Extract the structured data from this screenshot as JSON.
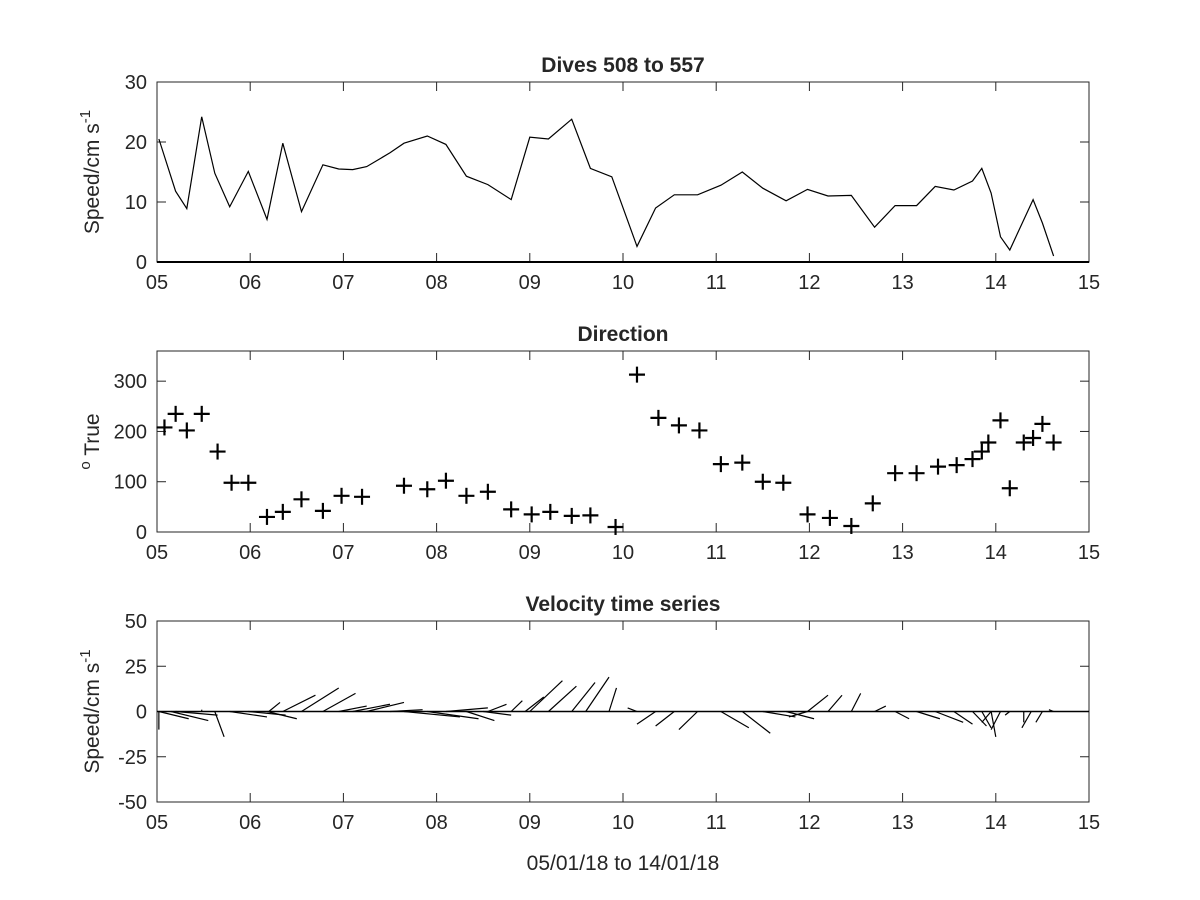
{
  "chart_data": [
    {
      "type": "line",
      "title": "Dives 508 to 557",
      "ylabel": "Speed/cm s",
      "ylabel_superscript": "-1",
      "xlabel": "",
      "xlim": [
        5,
        15
      ],
      "ylim": [
        0,
        30
      ],
      "xticks": [
        "05",
        "06",
        "07",
        "08",
        "09",
        "10",
        "11",
        "12",
        "13",
        "14",
        "15"
      ],
      "yticks": [
        "0",
        "10",
        "20",
        "30"
      ],
      "grid": false,
      "x": [
        5.02,
        5.2,
        5.32,
        5.48,
        5.62,
        5.78,
        5.98,
        6.18,
        6.35,
        6.55,
        6.78,
        6.95,
        7.1,
        7.25,
        7.5,
        7.65,
        7.9,
        8.1,
        8.32,
        8.55,
        8.8,
        9.0,
        9.2,
        9.45,
        9.65,
        9.88,
        10.15,
        10.35,
        10.55,
        10.8,
        11.05,
        11.28,
        11.5,
        11.75,
        11.98,
        12.2,
        12.45,
        12.7,
        12.92,
        13.15,
        13.35,
        13.55,
        13.75,
        13.85,
        13.95,
        14.05,
        14.15,
        14.4,
        14.5,
        14.62
      ],
      "values": [
        20.5,
        11.8,
        8.9,
        24.2,
        14.8,
        9.2,
        15.1,
        7.1,
        19.8,
        8.4,
        16.2,
        15.5,
        15.4,
        15.9,
        18.2,
        19.8,
        21.0,
        19.6,
        14.3,
        12.9,
        10.4,
        20.8,
        20.5,
        23.8,
        15.6,
        14.2,
        2.6,
        9.0,
        11.2,
        11.2,
        12.8,
        15.0,
        12.3,
        10.2,
        12.1,
        11.0,
        11.1,
        5.8,
        9.4,
        9.4,
        12.6,
        12.0,
        13.5,
        15.6,
        11.5,
        4.2,
        2.0,
        10.4,
        6.5,
        1.0
      ]
    },
    {
      "type": "scatter",
      "title": "Direction",
      "ylabel": "True",
      "ylabel_superscript": "o",
      "xlabel": "",
      "xlim": [
        5,
        15
      ],
      "ylim": [
        0,
        360
      ],
      "xticks": [
        "05",
        "06",
        "07",
        "08",
        "09",
        "10",
        "11",
        "12",
        "13",
        "14",
        "15"
      ],
      "yticks": [
        "0",
        "100",
        "200",
        "300"
      ],
      "marker": "+",
      "grid": false,
      "x": [
        5.08,
        5.2,
        5.32,
        5.48,
        5.65,
        5.8,
        5.98,
        6.18,
        6.35,
        6.55,
        6.78,
        6.98,
        7.2,
        7.65,
        7.9,
        8.1,
        8.32,
        8.55,
        8.8,
        9.02,
        9.22,
        9.45,
        9.65,
        9.92,
        10.15,
        10.38,
        10.6,
        10.82,
        11.05,
        11.28,
        11.5,
        11.72,
        11.98,
        12.22,
        12.45,
        12.68,
        12.92,
        13.15,
        13.38,
        13.58,
        13.75,
        13.85,
        13.92,
        14.05,
        14.15,
        14.3,
        14.4,
        14.5,
        14.62
      ],
      "values": [
        208,
        235,
        202,
        235,
        160,
        98,
        98,
        30,
        40,
        65,
        42,
        72,
        70,
        92,
        85,
        102,
        72,
        80,
        45,
        35,
        40,
        32,
        33,
        10,
        313,
        227,
        212,
        202,
        135,
        138,
        100,
        98,
        35,
        28,
        12,
        57,
        117,
        117,
        130,
        133,
        145,
        160,
        178,
        222,
        87,
        178,
        187,
        215,
        178
      ]
    },
    {
      "type": "line",
      "title": "Velocity time series",
      "ylabel": "Speed/cm s",
      "ylabel_superscript": "-1",
      "xlabel": "05/01/18 to 14/01/18",
      "xlim": [
        5,
        15
      ],
      "ylim": [
        -50,
        50
      ],
      "xticks": [
        "05",
        "06",
        "07",
        "08",
        "09",
        "10",
        "11",
        "12",
        "13",
        "14",
        "15"
      ],
      "yticks": [
        "-50",
        "-25",
        "0",
        "25",
        "50"
      ],
      "grid": false,
      "sticks": [
        {
          "t": 5.02,
          "dx": 0.0,
          "dy": -10
        },
        {
          "t": 5.02,
          "dx": 0.32,
          "dy": -4
        },
        {
          "t": 5.15,
          "dx": 0.4,
          "dy": -5
        },
        {
          "t": 5.2,
          "dx": 0.45,
          "dy": -2
        },
        {
          "t": 5.48,
          "dx": 0.0,
          "dy": 1
        },
        {
          "t": 5.62,
          "dx": 0.1,
          "dy": -14
        },
        {
          "t": 5.78,
          "dx": 0.4,
          "dy": -3
        },
        {
          "t": 5.98,
          "dx": 0.4,
          "dy": -2
        },
        {
          "t": 6.18,
          "dx": 0.32,
          "dy": -4
        },
        {
          "t": 6.2,
          "dx": 0.12,
          "dy": 5
        },
        {
          "t": 6.35,
          "dx": 0.35,
          "dy": 9
        },
        {
          "t": 6.55,
          "dx": 0.4,
          "dy": 13
        },
        {
          "t": 6.78,
          "dx": 0.35,
          "dy": 10
        },
        {
          "t": 6.95,
          "dx": 0.3,
          "dy": 3
        },
        {
          "t": 7.1,
          "dx": 0.4,
          "dy": 4
        },
        {
          "t": 7.25,
          "dx": 0.4,
          "dy": 5
        },
        {
          "t": 7.5,
          "dx": 0.35,
          "dy": 1
        },
        {
          "t": 7.65,
          "dx": 0.6,
          "dy": -3
        },
        {
          "t": 7.9,
          "dx": 0.55,
          "dy": -4
        },
        {
          "t": 8.1,
          "dx": 0.45,
          "dy": 2
        },
        {
          "t": 8.32,
          "dx": 0.3,
          "dy": -5
        },
        {
          "t": 8.5,
          "dx": 0.3,
          "dy": -2
        },
        {
          "t": 8.55,
          "dx": 0.2,
          "dy": 4
        },
        {
          "t": 8.8,
          "dx": 0.12,
          "dy": 6
        },
        {
          "t": 8.95,
          "dx": 0.2,
          "dy": 8
        },
        {
          "t": 9.0,
          "dx": 0.35,
          "dy": 17
        },
        {
          "t": 9.2,
          "dx": 0.3,
          "dy": 14
        },
        {
          "t": 9.45,
          "dx": 0.25,
          "dy": 16
        },
        {
          "t": 9.6,
          "dx": 0.25,
          "dy": 19
        },
        {
          "t": 9.85,
          "dx": 0.08,
          "dy": 13
        },
        {
          "t": 10.15,
          "dx": -0.1,
          "dy": 2
        },
        {
          "t": 10.35,
          "dx": -0.2,
          "dy": -7
        },
        {
          "t": 10.55,
          "dx": -0.2,
          "dy": -8
        },
        {
          "t": 10.8,
          "dx": -0.2,
          "dy": -10
        },
        {
          "t": 11.05,
          "dx": 0.3,
          "dy": -9
        },
        {
          "t": 11.28,
          "dx": 0.3,
          "dy": -12
        },
        {
          "t": 11.5,
          "dx": 0.35,
          "dy": -3
        },
        {
          "t": 11.75,
          "dx": 0.3,
          "dy": -4
        },
        {
          "t": 11.98,
          "dx": -0.2,
          "dy": -3
        },
        {
          "t": 11.98,
          "dx": 0.22,
          "dy": 9
        },
        {
          "t": 12.2,
          "dx": 0.15,
          "dy": 9
        },
        {
          "t": 12.45,
          "dx": 0.1,
          "dy": 10
        },
        {
          "t": 12.7,
          "dx": 0.12,
          "dy": 3
        },
        {
          "t": 12.92,
          "dx": 0.15,
          "dy": -4
        },
        {
          "t": 13.15,
          "dx": 0.25,
          "dy": -4
        },
        {
          "t": 13.35,
          "dx": 0.3,
          "dy": -6
        },
        {
          "t": 13.55,
          "dx": 0.2,
          "dy": -7
        },
        {
          "t": 13.75,
          "dx": 0.15,
          "dy": -8
        },
        {
          "t": 13.85,
          "dx": 0.1,
          "dy": -9
        },
        {
          "t": 13.95,
          "dx": -0.1,
          "dy": -6
        },
        {
          "t": 13.95,
          "dx": 0.05,
          "dy": -14
        },
        {
          "t": 14.05,
          "dx": -0.1,
          "dy": -10
        },
        {
          "t": 14.15,
          "dx": -0.05,
          "dy": -2
        },
        {
          "t": 14.3,
          "dx": 0.0,
          "dy": -6
        },
        {
          "t": 14.38,
          "dx": -0.1,
          "dy": -9
        },
        {
          "t": 14.5,
          "dx": -0.07,
          "dy": -6
        },
        {
          "t": 14.62,
          "dx": -0.05,
          "dy": 1
        }
      ]
    }
  ]
}
